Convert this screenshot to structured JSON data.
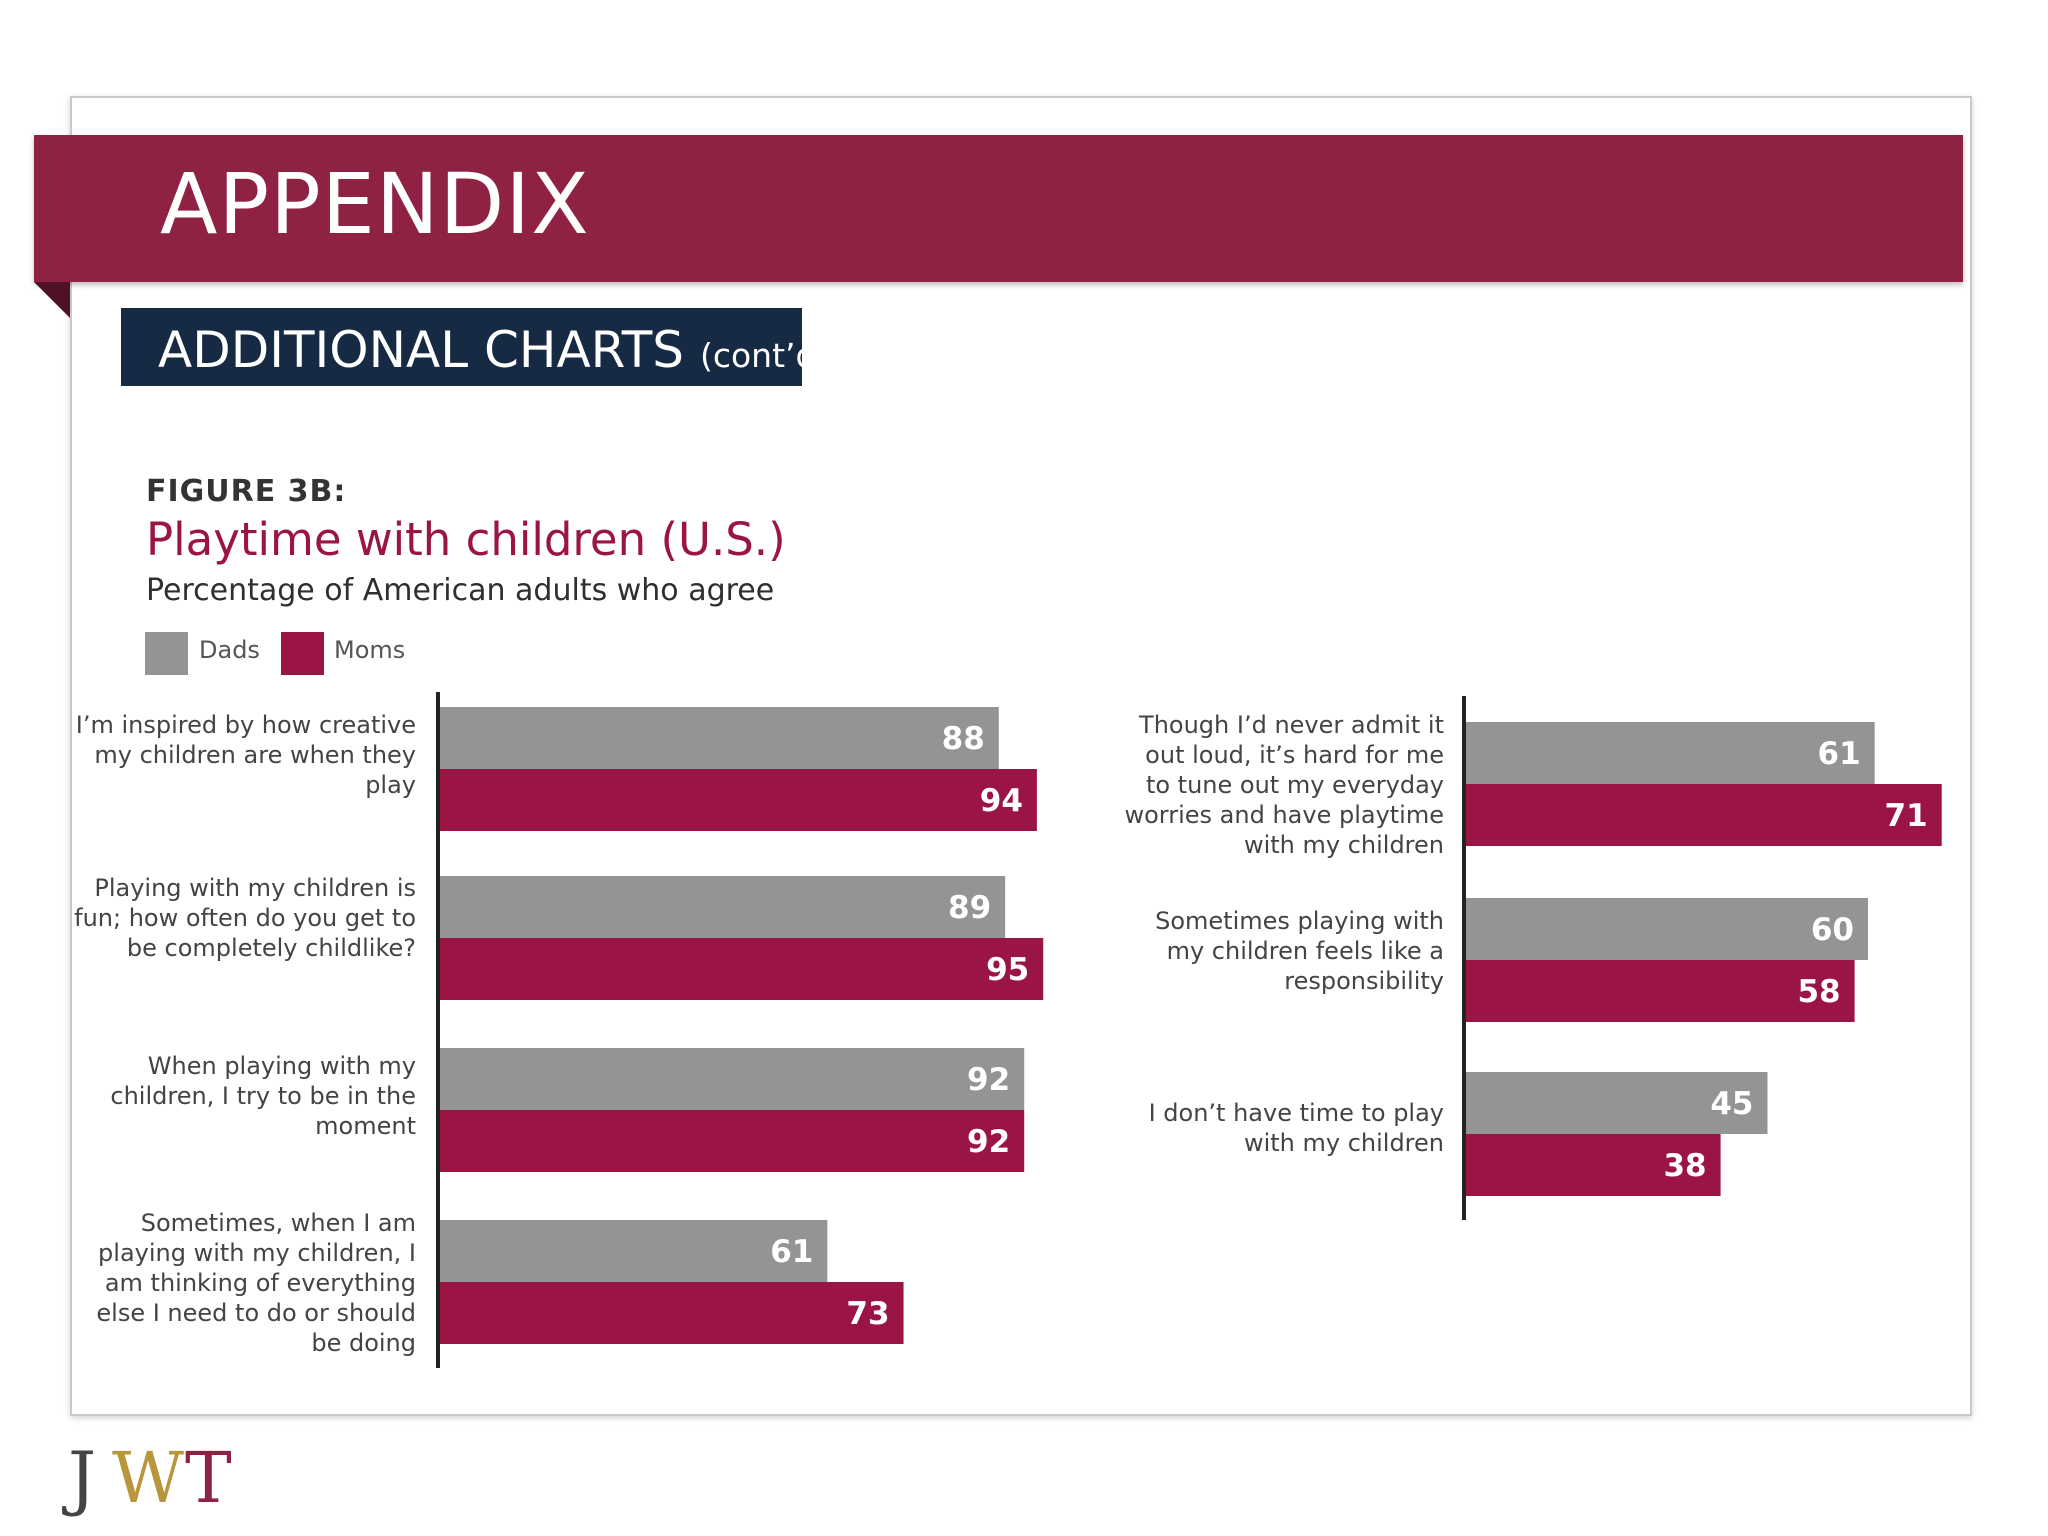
{
  "header": {
    "title": "APPENDIX",
    "subtitle_main": "ADDITIONAL CHARTS",
    "subtitle_suffix": "(cont’d.)"
  },
  "chart_data": {
    "type": "bar",
    "orientation": "horizontal",
    "figure_label": "FIGURE 3B:",
    "title": "Playtime with children (U.S.)",
    "subtitle": "Percentage of American adults who agree",
    "legend": [
      {
        "name": "Dads",
        "color": "#949494"
      },
      {
        "name": "Moms",
        "color": "#9b1446"
      }
    ],
    "left_panel": {
      "categories": [
        "I’m inspired by how creative my children are when they play",
        "Playing with my children is fun; how often do you get to be completely childlike?",
        "When playing with my children, I try to be in the moment",
        "Sometimes, when I am playing with my children, I am thinking of everything else I need to do or should be doing"
      ],
      "series": [
        {
          "name": "Dads",
          "values": [
            88,
            89,
            92,
            61
          ]
        },
        {
          "name": "Moms",
          "values": [
            94,
            95,
            92,
            73
          ]
        }
      ]
    },
    "right_panel": {
      "categories": [
        "Though I’d never admit it out loud, it’s hard for me to tune out my everyday worries and have playtime with my children",
        "Sometimes playing with my children feels like a responsibility",
        "I don’t have time to play with my children"
      ],
      "series": [
        {
          "name": "Dads",
          "values": [
            61,
            60,
            45
          ]
        },
        {
          "name": "Moms",
          "values": [
            71,
            58,
            38
          ]
        }
      ]
    },
    "value_range": [
      0,
      100
    ],
    "grid": false,
    "legend_position": "top-left"
  },
  "logo": {
    "letters": [
      "J",
      "W",
      "T"
    ],
    "colors": [
      "#444444",
      "#b8963c",
      "#8f2142"
    ]
  }
}
